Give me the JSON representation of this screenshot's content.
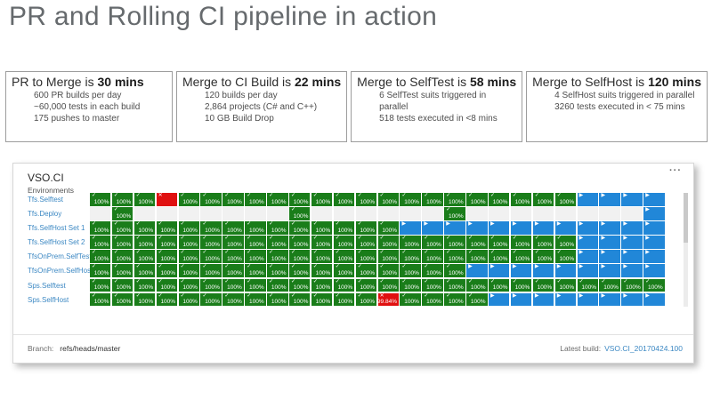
{
  "title": "PR and Rolling CI pipeline in action",
  "stat_boxes": [
    {
      "heading": "PR to Merge is ",
      "heading_bold": "30 mins",
      "lines": [
        "600 PR builds per day",
        "~60,000 tests in each build",
        "175 pushes to master"
      ]
    },
    {
      "heading": "Merge to CI Build is ",
      "heading_bold": "22 mins",
      "lines": [
        "120 builds per day",
        "2,864 projects (C# and C++)",
        "10 GB Build Drop"
      ]
    },
    {
      "heading": "Merge to SelfTest is ",
      "heading_bold": "58 mins",
      "lines": [
        "6 SelfTest suits triggered in parallel",
        "518 tests executed in <8 mins"
      ]
    },
    {
      "heading": "Merge to SelfHost is ",
      "heading_bold": "120 mins",
      "lines": [
        "4 SelfHost suits triggered in parallel",
        "3260 tests executed in < 75 mins"
      ]
    }
  ],
  "dashboard": {
    "title": "VSO.CI",
    "menu_icon": "···",
    "environments_label": "Environments",
    "columns": 26,
    "cell_legend": "P=passed(green) F=failed(red) R=queued/running(blue) .=empty",
    "cell_icons": {
      "pass": "✓",
      "fail": "✕",
      "running": "▶"
    },
    "pass_text": "100%",
    "colors": {
      "pass": "#1a7d1a",
      "fail": "#e01010",
      "running": "#2187d8",
      "empty": "#f1f1f1",
      "link": "#3c88c3"
    },
    "rows": [
      {
        "label": "Tfs.Selftest",
        "cells": "PPPFPPPPPPPPPPPPPPPPPPRRRR",
        "fail_text": ""
      },
      {
        "label": "Tfs.Deploy",
        "cells": ".P.......P......P........R",
        "fail_text": ""
      },
      {
        "label": "Tfs.SelfHost Set 1",
        "cells": "PPPPPPPPPPPPPPRRRRRRRRRRRR",
        "fail_text": ""
      },
      {
        "label": "Tfs.SelfHost Set 2",
        "cells": "PPPPPPPPPPPPPPPPPPPPPPRRRR",
        "fail_text": ""
      },
      {
        "label": "TfsOnPrem.SelfTest",
        "cells": "PPPPPPPPPPPPPPPPPPPPPPRRRR",
        "fail_text": ""
      },
      {
        "label": "TfsOnPrem.SelfHost",
        "cells": "PPPPPPPPPPPPPPPPPRRRRRRRRR",
        "fail_text": ""
      },
      {
        "label": "Sps.Selftest",
        "cells": "PPPPPPPPPPPPPPPPPPPPPPPPPP",
        "fail_text": ""
      },
      {
        "label": "Sps.SelfHost",
        "cells": "PPPPPPPPPPPPPFPPPPRRRRRRRR",
        "fail_text": "99.84%"
      }
    ],
    "footer": {
      "branch_label": "Branch:",
      "branch_value": "refs/heads/master",
      "latest_build_label": "Latest build:",
      "latest_build_value": "VSO.CI_20170424.100"
    }
  }
}
